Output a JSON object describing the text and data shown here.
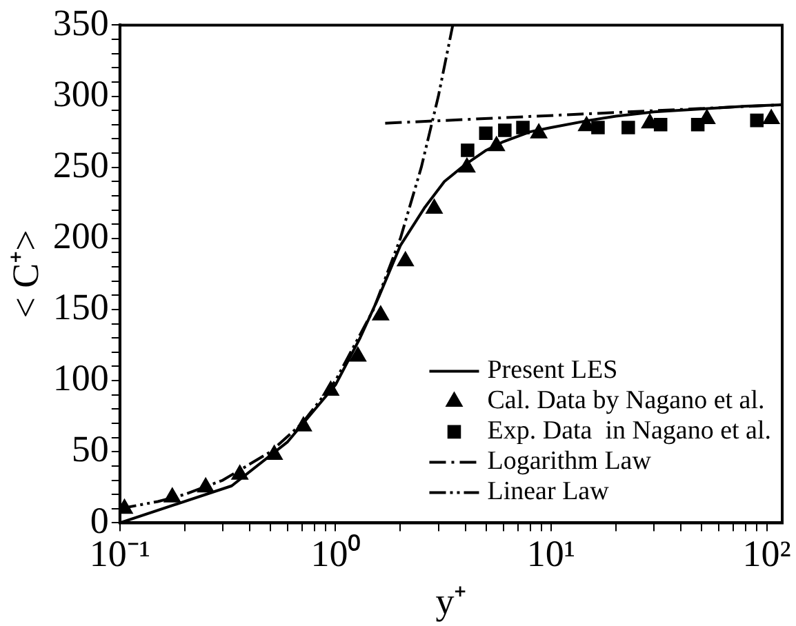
{
  "chart_data": {
    "type": "line",
    "xlabel": "y⁺",
    "ylabel": "< C⁺>",
    "log": "x",
    "grid": false,
    "legend": "bottom right",
    "xlim": [
      0.1,
      118
    ],
    "xticks": [
      {
        "value": 0.1,
        "label": "10⁻¹"
      },
      {
        "value": 0.2,
        "label": null
      },
      {
        "value": 0.3,
        "label": null
      },
      {
        "value": 0.4,
        "label": null
      },
      {
        "value": 0.5,
        "label": null
      },
      {
        "value": 0.6,
        "label": null
      },
      {
        "value": 0.7,
        "label": null
      },
      {
        "value": 0.8,
        "label": null
      },
      {
        "value": 0.9,
        "label": null
      },
      {
        "value": 1,
        "label": "10⁰"
      },
      {
        "value": 2,
        "label": null
      },
      {
        "value": 3,
        "label": null
      },
      {
        "value": 4,
        "label": null
      },
      {
        "value": 5,
        "label": null
      },
      {
        "value": 6,
        "label": null
      },
      {
        "value": 7,
        "label": null
      },
      {
        "value": 8,
        "label": null
      },
      {
        "value": 9,
        "label": null
      },
      {
        "value": 10,
        "label": "10¹"
      },
      {
        "value": 20,
        "label": null
      },
      {
        "value": 30,
        "label": null
      },
      {
        "value": 40,
        "label": null
      },
      {
        "value": 50,
        "label": null
      },
      {
        "value": 60,
        "label": null
      },
      {
        "value": 70,
        "label": null
      },
      {
        "value": 80,
        "label": null
      },
      {
        "value": 90,
        "label": null
      },
      {
        "value": 100,
        "label": "10²"
      }
    ],
    "ylim": [
      0,
      350
    ],
    "yticks": [
      0,
      {
        "value": 10,
        "label": null
      },
      {
        "value": 20,
        "label": null
      },
      {
        "value": 30,
        "label": null
      },
      {
        "value": 40,
        "label": null
      },
      50,
      {
        "value": 60,
        "label": null
      },
      {
        "value": 70,
        "label": null
      },
      {
        "value": 80,
        "label": null
      },
      {
        "value": 90,
        "label": null
      },
      100,
      {
        "value": 110,
        "label": null
      },
      {
        "value": 120,
        "label": null
      },
      {
        "value": 130,
        "label": null
      },
      {
        "value": 140,
        "label": null
      },
      150,
      {
        "value": 160,
        "label": null
      },
      {
        "value": 170,
        "label": null
      },
      {
        "value": 180,
        "label": null
      },
      {
        "value": 190,
        "label": null
      },
      200,
      {
        "value": 210,
        "label": null
      },
      {
        "value": 220,
        "label": null
      },
      {
        "value": 230,
        "label": null
      },
      {
        "value": 240,
        "label": null
      },
      250,
      {
        "value": 260,
        "label": null
      },
      {
        "value": 270,
        "label": null
      },
      {
        "value": 280,
        "label": null
      },
      {
        "value": 290,
        "label": null
      },
      300,
      {
        "value": 310,
        "label": null
      },
      {
        "value": 320,
        "label": null
      },
      {
        "value": 330,
        "label": null
      },
      {
        "value": 340,
        "label": null
      },
      350
    ],
    "series": [
      {
        "name": "Present LES",
        "type": "line",
        "color": "#000000",
        "marker": "none",
        "line_style": "solid",
        "x": [
          0.1,
          0.33,
          0.6,
          1,
          1.3,
          1.6,
          2,
          2.6,
          3.2,
          4,
          5,
          6,
          8,
          10,
          15,
          20,
          30,
          50,
          80,
          118
        ],
        "values": [
          0,
          26,
          57,
          97,
          130,
          160,
          195,
          222,
          240,
          252,
          262,
          268,
          275,
          278,
          283,
          286,
          289,
          291,
          293,
          294
        ]
      },
      {
        "name": "Cal. Data by Nagano et al.",
        "type": "scatter",
        "color": "#000000",
        "marker": "triangle",
        "x": [
          0.105,
          0.175,
          0.25,
          0.36,
          0.52,
          0.71,
          0.95,
          1.27,
          1.62,
          2.11,
          2.87,
          4.07,
          5.58,
          8.77,
          14.6,
          28.7,
          52.8,
          105
        ],
        "values": [
          10,
          18,
          25,
          34,
          48,
          68,
          93,
          117,
          146,
          184,
          221,
          250,
          265,
          274,
          279,
          281,
          284,
          284
        ]
      },
      {
        "name": "Exp. Data  in Nagano et al.",
        "type": "scatter",
        "color": "#000000",
        "marker": "square",
        "x": [
          4.1,
          4.98,
          6.1,
          7.4,
          16.5,
          22.8,
          32.2,
          47.9,
          90
        ],
        "values": [
          262,
          274,
          276,
          278,
          278,
          278,
          280,
          280,
          283
        ]
      },
      {
        "name": "Logarithm Law",
        "type": "line",
        "color": "#000000",
        "marker": "none",
        "line_style": "dashed",
        "x": [
          1.7,
          118
        ],
        "values": [
          281,
          294
        ]
      },
      {
        "name": "Linear Law",
        "type": "line",
        "color": "#000000",
        "marker": "none",
        "line_style": "dotted",
        "x": [
          0.1,
          0.15,
          0.2,
          0.3,
          0.5,
          0.7,
          1,
          1.5,
          2,
          2.5,
          3,
          3.5
        ],
        "values": [
          10,
          15,
          20,
          30,
          50,
          70,
          100,
          150,
          200,
          250,
          300,
          350
        ]
      }
    ]
  }
}
